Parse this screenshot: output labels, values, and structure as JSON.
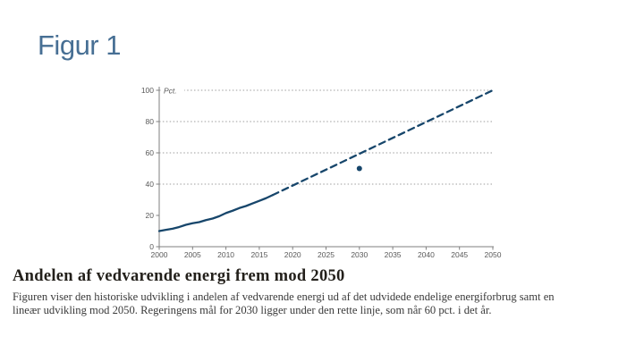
{
  "slide": {
    "figure_label": "Figur 1",
    "figure_label_color": "#476f94",
    "heading": "Andelen af vedvarende energi frem mod 2050",
    "caption_line1": "Figuren viser den historiske udvikling i andelen af vedvarende energi ud af det udvidede endelige energiforbrug samt en",
    "caption_line2": "lineær udvikling mod 2050. Regeringens mål for 2030 ligger under den rette linje, som når 60 pct. i det år."
  },
  "chart_data": {
    "type": "line",
    "title": "",
    "unit_label": "Pct.",
    "xlim": [
      2000,
      2050
    ],
    "ylim": [
      0,
      100
    ],
    "xticks": [
      2000,
      2005,
      2010,
      2015,
      2020,
      2025,
      2030,
      2035,
      2040,
      2045,
      2050
    ],
    "yticks": [
      0,
      20,
      40,
      60,
      80,
      100
    ],
    "gridlines": [
      40,
      60,
      80,
      100
    ],
    "grid_style": "dotted",
    "legend_position": "none",
    "series": [
      {
        "name": "Historisk udvikling af VE-andel",
        "type": "line",
        "style": "solid",
        "x": [
          2000,
          2001,
          2002,
          2003,
          2004,
          2005,
          2006,
          2007,
          2008,
          2009,
          2010,
          2011,
          2012,
          2013,
          2014,
          2015,
          2016,
          2017
        ],
        "values": [
          10,
          10.8,
          11.5,
          12.6,
          14,
          15,
          15.7,
          17,
          18,
          19.5,
          21.5,
          23,
          24.7,
          26,
          27.7,
          29.3,
          31,
          33
        ]
      },
      {
        "name": "Lineær udvikling mod 2050",
        "type": "line",
        "style": "dashed",
        "x": [
          2017,
          2050
        ],
        "values": [
          33,
          100
        ]
      },
      {
        "name": "Regeringens mål for 2030",
        "type": "point",
        "style": "point",
        "x": [
          2030
        ],
        "values": [
          50
        ]
      }
    ],
    "colors": {
      "line": "#17466b",
      "axis": "#7f7f7f",
      "grid": "#9e9e9e",
      "tick_label": "#595959"
    }
  }
}
